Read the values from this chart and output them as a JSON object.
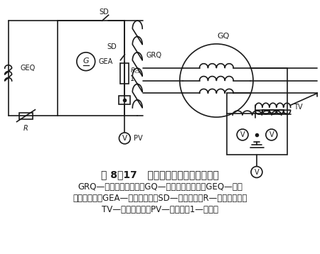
{
  "title_line1": "图 8－17   发电机空载特性试验接线图",
  "caption_line2": "GRQ—发电机转子绕组；GQ—发电机定子绕组；GEQ—励磁",
  "caption_line3": "机励磁绕组；GEA—励磁机电枢；SD—灭磁开关；R—磁场变阻器；",
  "caption_line4": "TV—电压互感器；PV—毫伏表；1—分流器",
  "bg_color": "#ffffff",
  "line_color": "#1a1a1a",
  "font_size_title": 10,
  "font_size_caption": 8.5
}
